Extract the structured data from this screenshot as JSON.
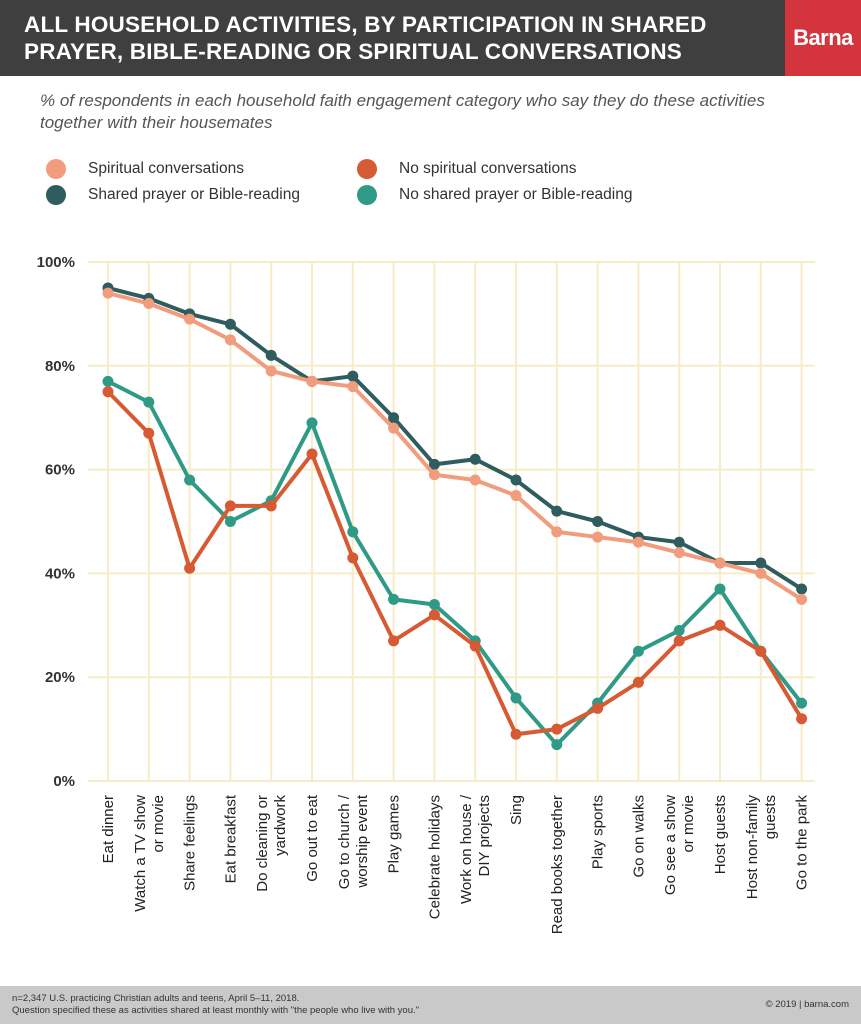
{
  "header": {
    "title": "All household activities, by participation in shared prayer, Bible-reading or spiritual conversations",
    "brand": "Barna"
  },
  "subtitle": "% of respondents in each household faith engagement category who say they do these activities together with their housemates",
  "footer": {
    "footnote_line1": "n=2,347 U.S. practicing Christian adults and teens, April 5–11, 2018.",
    "footnote_line2": "Question specified these as activities shared at least monthly with \"the people who live with you.\"",
    "copyright": "© 2019 | barna.com"
  },
  "colors": {
    "header_bg": "#3f3f40",
    "brand_bg": "#d4343c",
    "grid": "#f7ecc8",
    "spiritual_conversations": "#f19c7c",
    "no_spiritual_conversations": "#d65a33",
    "shared_prayer": "#2f5c5e",
    "no_shared_prayer": "#2f9a86"
  },
  "chart_data": {
    "type": "line",
    "title": "All household activities, by participation in shared prayer, Bible-reading or spiritual conversations",
    "subtitle": "% of respondents in each household faith engagement category who say they do these activities together with their housemates",
    "ylim": [
      0,
      100
    ],
    "yticks": [
      0,
      20,
      40,
      60,
      80,
      100
    ],
    "ytick_labels": [
      "0%",
      "20%",
      "40%",
      "60%",
      "80%",
      "100%"
    ],
    "grid": true,
    "legend_position": "top-left",
    "categories": [
      [
        "Eat dinner"
      ],
      [
        "Watch a TV show",
        "or movie"
      ],
      [
        "Share feelings"
      ],
      [
        "Eat breakfast"
      ],
      [
        "Do cleaning or",
        "yardwork"
      ],
      [
        "Go out to eat"
      ],
      [
        "Go to church /",
        "worship event"
      ],
      [
        "Play games"
      ],
      [
        "Celebrate holidays"
      ],
      [
        "Work on house /",
        "DIY projects"
      ],
      [
        "Sing"
      ],
      [
        "Read books together"
      ],
      [
        "Play sports"
      ],
      [
        "Go on walks"
      ],
      [
        "Go see a show",
        "or movie"
      ],
      [
        "Host guests"
      ],
      [
        "Host non-family",
        "guests"
      ],
      [
        "Go to the park"
      ]
    ],
    "series": [
      {
        "name": "Shared prayer or Bible-reading",
        "color": "#2f5c5e",
        "values": [
          95,
          93,
          90,
          88,
          82,
          77,
          78,
          70,
          61,
          62,
          58,
          52,
          50,
          47,
          46,
          42,
          42,
          37
        ]
      },
      {
        "name": "Spiritual conversations",
        "color": "#f19c7c",
        "values": [
          94,
          92,
          89,
          85,
          79,
          77,
          76,
          68,
          59,
          58,
          55,
          48,
          47,
          46,
          44,
          42,
          40,
          35
        ]
      },
      {
        "name": "No shared prayer or Bible-reading",
        "color": "#2f9a86",
        "values": [
          77,
          73,
          58,
          50,
          54,
          69,
          48,
          35,
          34,
          27,
          16,
          7,
          15,
          25,
          29,
          37,
          25,
          15
        ]
      },
      {
        "name": "No spiritual conversations",
        "color": "#d65a33",
        "values": [
          75,
          67,
          41,
          53,
          53,
          63,
          43,
          27,
          32,
          26,
          9,
          10,
          14,
          19,
          27,
          30,
          25,
          12
        ]
      }
    ]
  }
}
